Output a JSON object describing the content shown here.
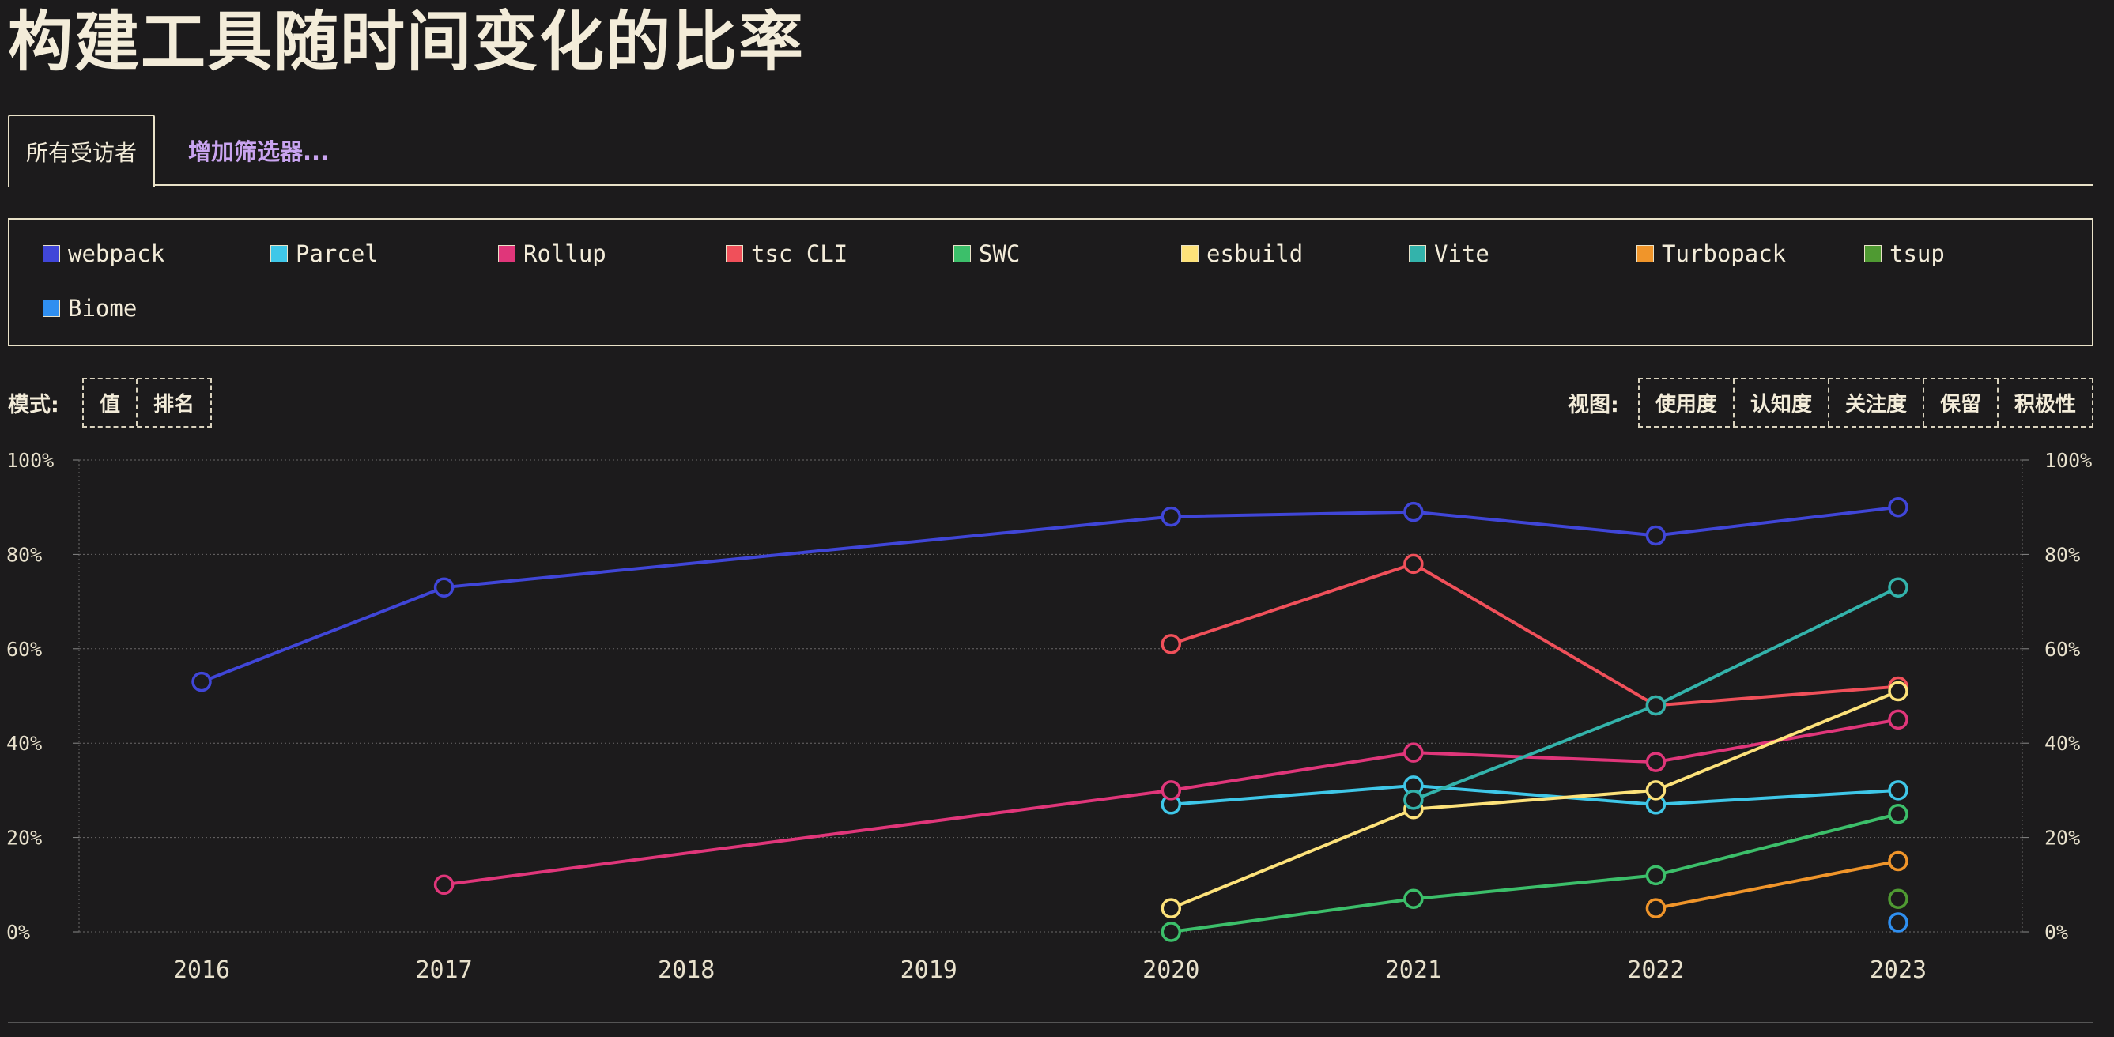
{
  "page": {
    "title": "构建工具随时间变化的比率",
    "tabs": {
      "active_label": "所有受访者",
      "add_filter_label": "增加筛选器..."
    },
    "mode": {
      "label": "模式:",
      "options": [
        "值",
        "排名"
      ]
    },
    "view": {
      "label": "视图:",
      "options": [
        "使用度",
        "认知度",
        "关注度",
        "保留",
        "积极性"
      ]
    }
  },
  "chart_data": {
    "type": "line",
    "title": "构建工具随时间变化的比率",
    "x": [
      2016,
      2017,
      2018,
      2019,
      2020,
      2021,
      2022,
      2023
    ],
    "x_tick_labels": [
      "2016",
      "2017",
      "2018",
      "2019",
      "2020",
      "2021",
      "2022",
      "2023"
    ],
    "ylim": [
      0,
      100
    ],
    "y_tick_labels": [
      "0%",
      "20%",
      "40%",
      "60%",
      "80%",
      "100%"
    ],
    "grid": true,
    "legend_position": "top",
    "series": [
      {
        "name": "webpack",
        "color": "#4046d8",
        "points": [
          [
            2016,
            53
          ],
          [
            2017,
            73
          ],
          [
            2020,
            88
          ],
          [
            2021,
            89
          ],
          [
            2022,
            84
          ],
          [
            2023,
            90
          ]
        ]
      },
      {
        "name": "Parcel",
        "color": "#3fc7e8",
        "points": [
          [
            2020,
            27
          ],
          [
            2021,
            31
          ],
          [
            2022,
            27
          ],
          [
            2023,
            30
          ]
        ]
      },
      {
        "name": "Rollup",
        "color": "#e0367a",
        "points": [
          [
            2017,
            10
          ],
          [
            2020,
            30
          ],
          [
            2021,
            38
          ],
          [
            2022,
            36
          ],
          [
            2023,
            45
          ]
        ]
      },
      {
        "name": "tsc CLI",
        "color": "#f0505a",
        "points": [
          [
            2020,
            61
          ],
          [
            2021,
            78
          ],
          [
            2022,
            48
          ],
          [
            2023,
            52
          ]
        ]
      },
      {
        "name": "SWC",
        "color": "#3cbf6a",
        "points": [
          [
            2020,
            0
          ],
          [
            2021,
            7
          ],
          [
            2022,
            12
          ],
          [
            2023,
            25
          ]
        ]
      },
      {
        "name": "esbuild",
        "color": "#fde27a",
        "points": [
          [
            2020,
            5
          ],
          [
            2021,
            26
          ],
          [
            2022,
            30
          ],
          [
            2023,
            51
          ]
        ]
      },
      {
        "name": "Vite",
        "color": "#33b3ab",
        "points": [
          [
            2021,
            28
          ],
          [
            2022,
            48
          ],
          [
            2023,
            73
          ]
        ]
      },
      {
        "name": "Turbopack",
        "color": "#f0952a",
        "points": [
          [
            2022,
            5
          ],
          [
            2023,
            15
          ]
        ]
      },
      {
        "name": "tsup",
        "color": "#4f9a32",
        "points": [
          [
            2023,
            7
          ]
        ]
      },
      {
        "name": "Biome",
        "color": "#2f8ff0",
        "points": [
          [
            2023,
            2
          ]
        ]
      }
    ]
  }
}
